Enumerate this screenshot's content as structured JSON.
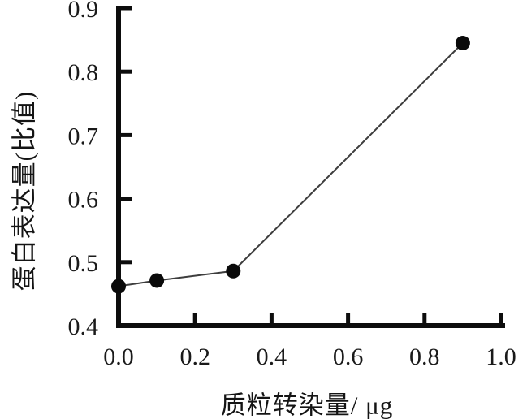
{
  "figure": {
    "background_color": "#ffffff",
    "axis_color": "#0d0d0d",
    "line_color": "#3d3d3d",
    "marker_color": "#0a0a0a",
    "tick_label_color": "#1a1a1a"
  },
  "chart_data": {
    "type": "line",
    "x": [
      0.0,
      0.1,
      0.3,
      0.9
    ],
    "y": [
      0.462,
      0.471,
      0.486,
      0.845
    ],
    "series_name": "蛋白表达量",
    "title": "",
    "xlabel": "质粒转染量/ μg",
    "ylabel": "蛋白表达量(比值)",
    "xlim": [
      0.0,
      1.0
    ],
    "ylim": [
      0.4,
      0.9
    ],
    "x_ticks": [
      0.0,
      0.2,
      0.4,
      0.6,
      0.8,
      1.0
    ],
    "y_ticks": [
      0.4,
      0.5,
      0.6,
      0.7,
      0.8,
      0.9
    ],
    "x_tick_labels": [
      "0.0",
      "0.2",
      "0.4",
      "0.6",
      "0.8",
      "1.0"
    ],
    "y_tick_labels": [
      "0.4",
      "0.5",
      "0.6",
      "0.7",
      "0.8",
      "0.9"
    ],
    "grid": false,
    "legend_position": "none",
    "marker": "filled-circle",
    "marker_radius_px": 9
  }
}
